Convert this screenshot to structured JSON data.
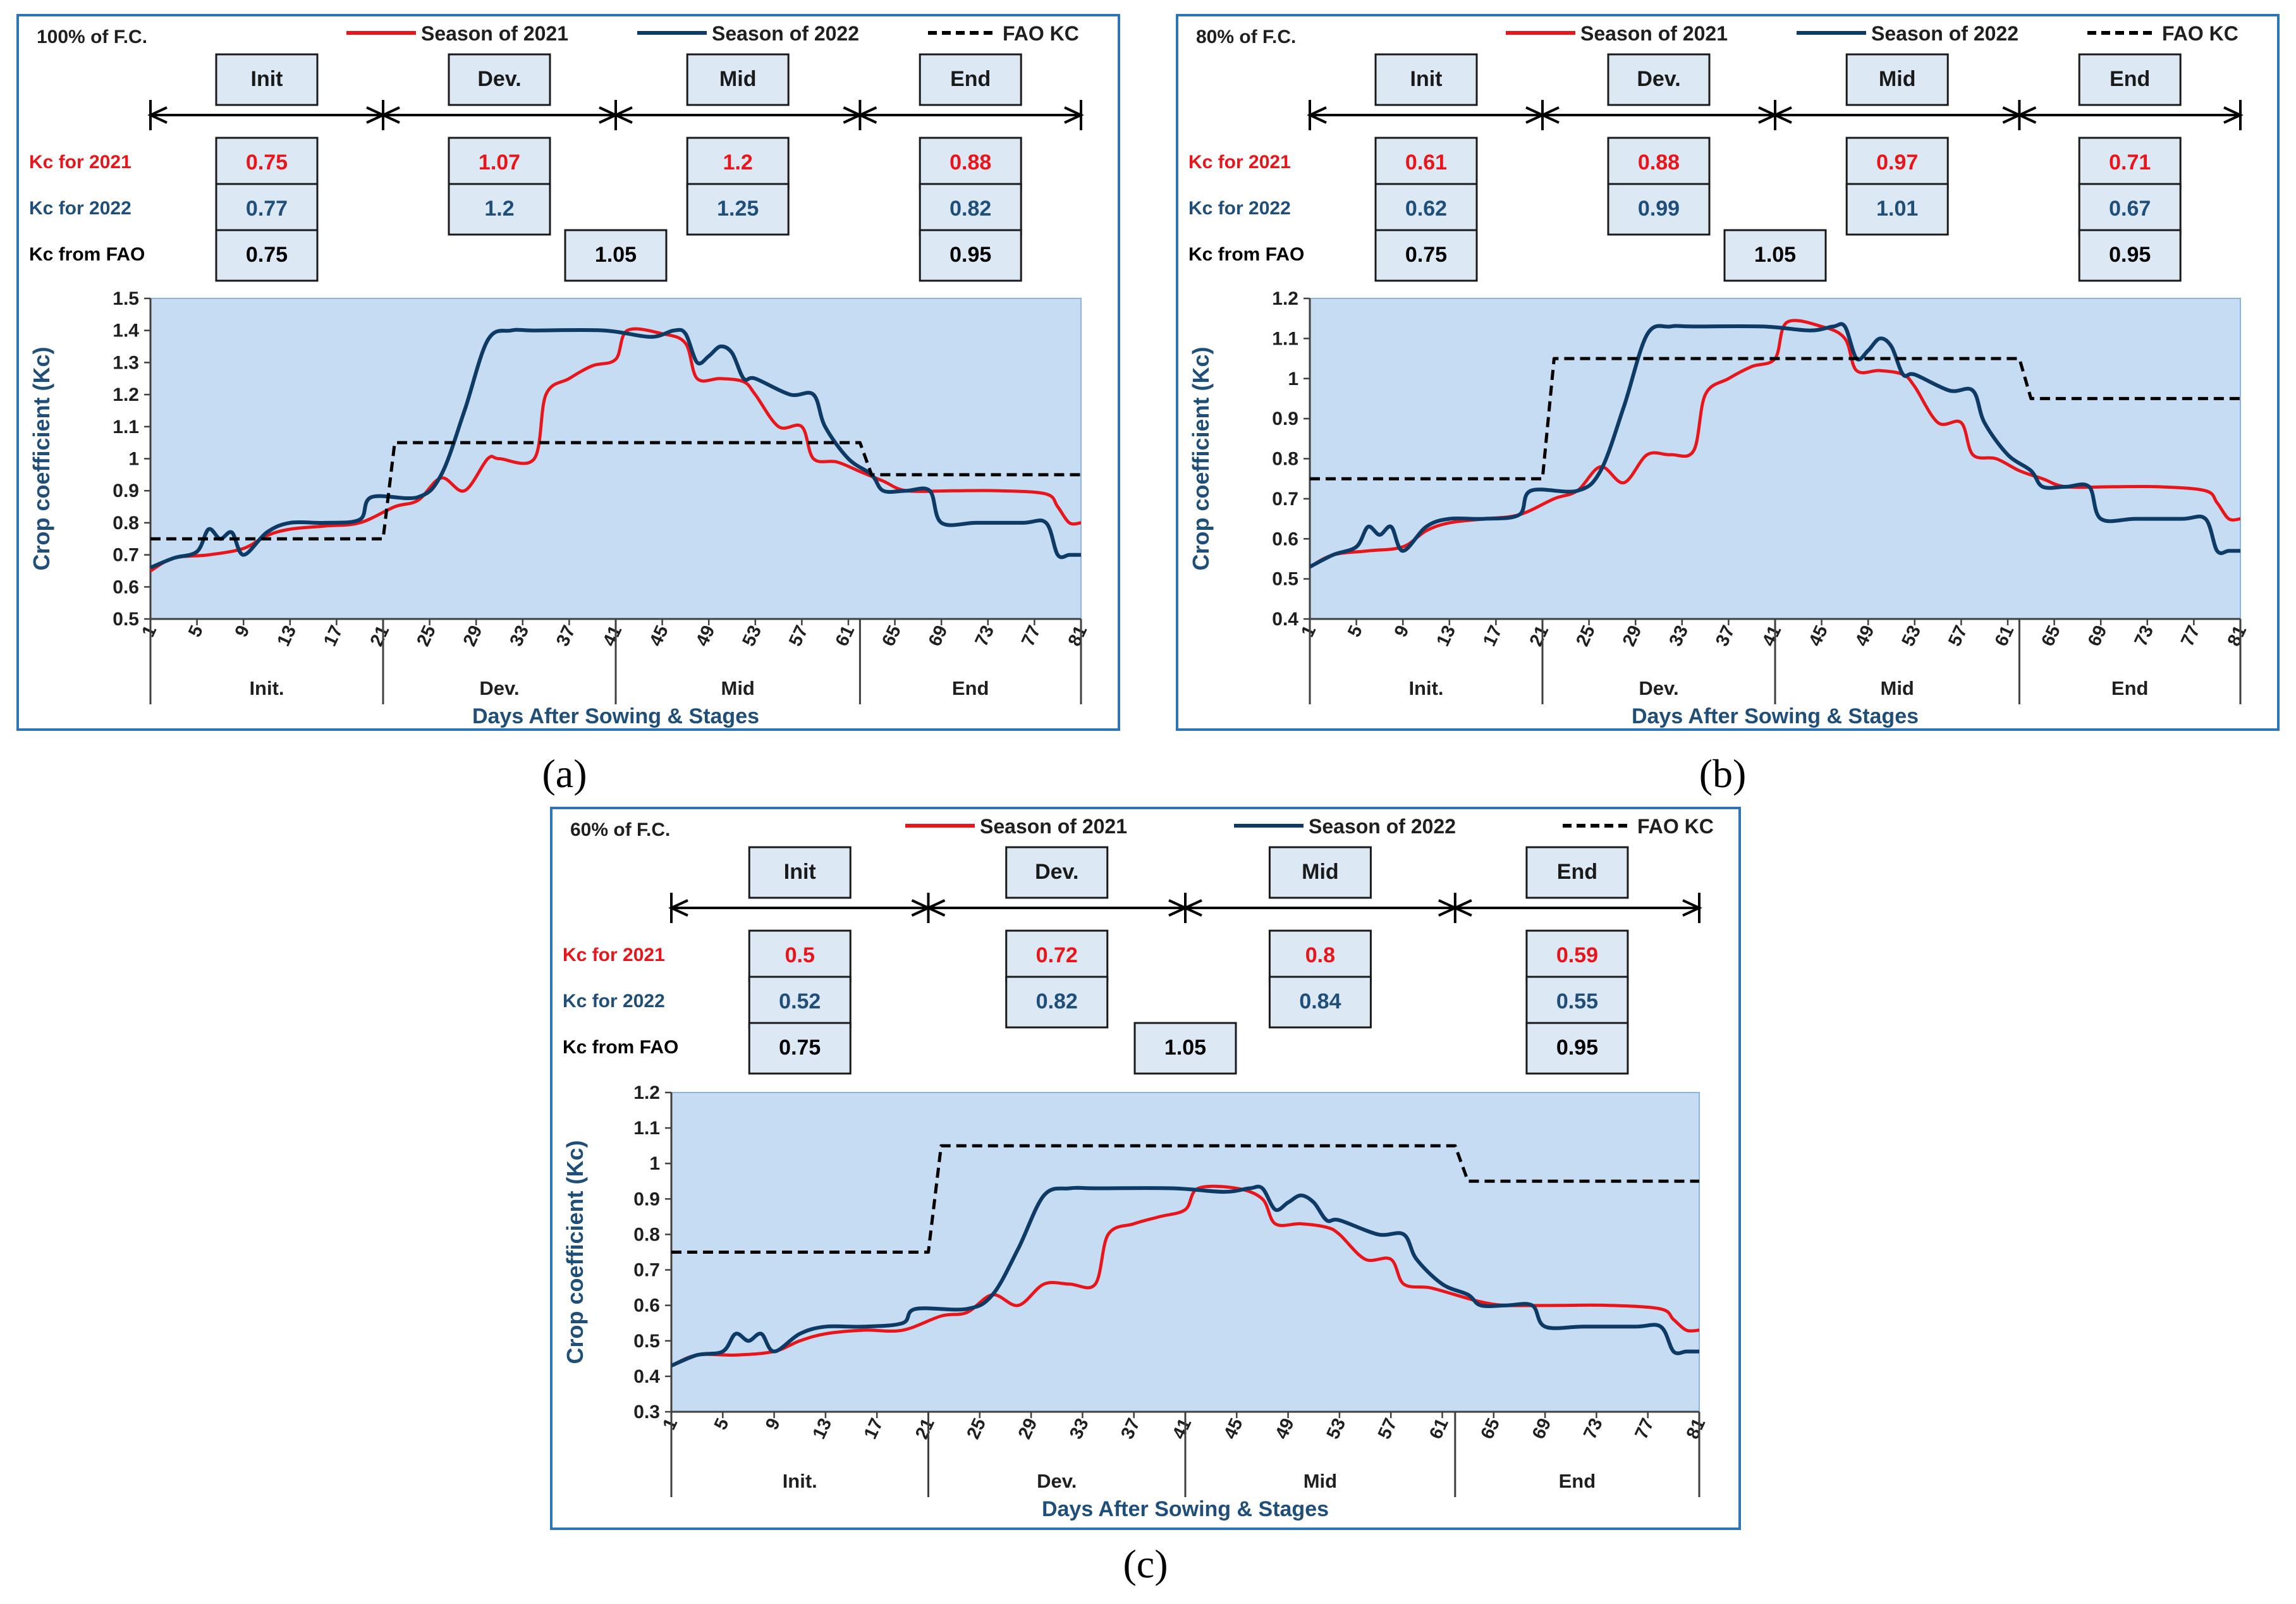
{
  "figure": {
    "captions": [
      "(a)",
      "(b)",
      "(c)"
    ],
    "legend": {
      "s2021": "Season of 2021",
      "s2022": "Season of 2022",
      "fao": "FAO KC"
    },
    "row_labels": {
      "k2021": "Kc for 2021",
      "k2022": "Kc for 2022",
      "fao": "Kc from FAO"
    },
    "stage_headers": [
      "Init",
      "Dev.",
      "Mid",
      "End"
    ],
    "stage_axis_labels": [
      "Init.",
      "Dev.",
      "Mid",
      "End"
    ],
    "colors": {
      "s2021": "#e8161b",
      "s2022": "#0e3a66",
      "fao": "#000000",
      "kc2021_text": "#e8161b",
      "kc2022_text": "#1f4e79",
      "fao_text": "#000000"
    }
  },
  "chart_data": [
    {
      "type": "line",
      "title": "100% of F.C.",
      "xlabel": "Days After Sowing & Stages",
      "ylabel": "Crop coefficient (Kc)",
      "ylim": [
        0.5,
        1.5
      ],
      "yticks": [
        "0.5",
        "0.6",
        "0.7",
        "0.8",
        "0.9",
        "1",
        "1.1",
        "1.2",
        "1.3",
        "1.4",
        "1.5"
      ],
      "xlim": [
        1,
        81
      ],
      "xticks": [
        "1",
        "5",
        "9",
        "13",
        "17",
        "21",
        "25",
        "29",
        "33",
        "37",
        "41",
        "45",
        "49",
        "53",
        "57",
        "61",
        "65",
        "69",
        "73",
        "77",
        "81"
      ],
      "stage_boundaries": [
        21,
        41,
        62
      ],
      "kc_2021": [
        "0.75",
        "1.07",
        "1.2",
        "0.88"
      ],
      "kc_2022": [
        "0.77",
        "1.2",
        "1.25",
        "0.82"
      ],
      "kc_fao": [
        "0.75",
        "1.05",
        "0.95"
      ],
      "series": [
        {
          "name": "Season of 2021",
          "x": [
            1,
            3,
            6,
            9,
            11,
            13,
            16,
            19,
            22,
            24,
            26,
            28,
            30,
            31,
            34,
            35,
            37,
            39,
            41,
            42,
            45,
            47,
            48,
            50,
            52,
            53,
            55,
            57,
            58,
            60,
            62,
            64,
            66,
            70,
            74,
            78,
            79,
            80,
            81
          ],
          "y": [
            0.65,
            0.69,
            0.7,
            0.72,
            0.76,
            0.78,
            0.79,
            0.8,
            0.85,
            0.87,
            0.94,
            0.9,
            1.0,
            1.0,
            1.0,
            1.2,
            1.25,
            1.29,
            1.31,
            1.4,
            1.39,
            1.36,
            1.25,
            1.25,
            1.24,
            1.2,
            1.1,
            1.1,
            1.0,
            0.99,
            0.96,
            0.93,
            0.9,
            0.9,
            0.9,
            0.89,
            0.85,
            0.8,
            0.8
          ]
        },
        {
          "name": "Season of 2022",
          "x": [
            1,
            3,
            5,
            6,
            7,
            8,
            9,
            11,
            13,
            16,
            19,
            20,
            24,
            26,
            28,
            30,
            32,
            34,
            40,
            44,
            46,
            47,
            48,
            49,
            50,
            51,
            52,
            53,
            56,
            58,
            59,
            61,
            63,
            64,
            66,
            68,
            69,
            72,
            76,
            78,
            79,
            80,
            81
          ],
          "y": [
            0.66,
            0.69,
            0.71,
            0.78,
            0.75,
            0.77,
            0.7,
            0.77,
            0.8,
            0.8,
            0.81,
            0.88,
            0.88,
            0.95,
            1.15,
            1.37,
            1.4,
            1.4,
            1.4,
            1.38,
            1.4,
            1.39,
            1.3,
            1.32,
            1.35,
            1.33,
            1.25,
            1.25,
            1.2,
            1.2,
            1.1,
            1.0,
            0.95,
            0.9,
            0.9,
            0.9,
            0.8,
            0.8,
            0.8,
            0.8,
            0.7,
            0.7,
            0.7
          ]
        },
        {
          "name": "FAO KC",
          "x": [
            1,
            21,
            22,
            62,
            63,
            81
          ],
          "y": [
            0.75,
            0.75,
            1.05,
            1.05,
            0.95,
            0.95
          ]
        }
      ]
    },
    {
      "type": "line",
      "title": "80% of F.C.",
      "xlabel": "Days After Sowing & Stages",
      "ylabel": "Crop coefficient (Kc)",
      "ylim": [
        0.4,
        1.2
      ],
      "yticks": [
        "0.4",
        "0.5",
        "0.6",
        "0.7",
        "0.8",
        "0.9",
        "1",
        "1.1",
        "1.2"
      ],
      "xlim": [
        1,
        81
      ],
      "xticks": [
        "1",
        "5",
        "9",
        "13",
        "17",
        "21",
        "25",
        "29",
        "33",
        "37",
        "41",
        "45",
        "49",
        "53",
        "57",
        "61",
        "65",
        "69",
        "73",
        "77",
        "81"
      ],
      "stage_boundaries": [
        21,
        41,
        62
      ],
      "kc_2021": [
        "0.61",
        "0.88",
        "0.97",
        "0.71"
      ],
      "kc_2022": [
        "0.62",
        "0.99",
        "1.01",
        "0.67"
      ],
      "kc_fao": [
        "0.75",
        "1.05",
        "0.95"
      ],
      "series": [
        {
          "name": "Season of 2021",
          "x": [
            1,
            3,
            6,
            9,
            11,
            13,
            16,
            19,
            22,
            24,
            26,
            28,
            30,
            32,
            34,
            35,
            37,
            39,
            41,
            42,
            45,
            47,
            48,
            50,
            52,
            53,
            55,
            57,
            58,
            60,
            62,
            64,
            66,
            70,
            74,
            78,
            79,
            80,
            81
          ],
          "y": [
            0.53,
            0.56,
            0.57,
            0.58,
            0.62,
            0.64,
            0.65,
            0.66,
            0.7,
            0.72,
            0.78,
            0.74,
            0.81,
            0.81,
            0.82,
            0.96,
            1.0,
            1.03,
            1.05,
            1.14,
            1.13,
            1.1,
            1.02,
            1.02,
            1.01,
            0.98,
            0.89,
            0.89,
            0.81,
            0.8,
            0.77,
            0.75,
            0.73,
            0.73,
            0.73,
            0.72,
            0.69,
            0.65,
            0.65
          ]
        },
        {
          "name": "Season of 2022",
          "x": [
            1,
            3,
            5,
            6,
            7,
            8,
            9,
            11,
            13,
            16,
            19,
            20,
            24,
            26,
            28,
            30,
            32,
            34,
            40,
            44,
            46,
            47,
            48,
            49,
            50,
            51,
            52,
            53,
            56,
            58,
            59,
            61,
            63,
            64,
            66,
            68,
            69,
            72,
            76,
            78,
            79,
            80,
            81
          ],
          "y": [
            0.53,
            0.56,
            0.58,
            0.63,
            0.61,
            0.63,
            0.57,
            0.63,
            0.65,
            0.65,
            0.66,
            0.72,
            0.72,
            0.77,
            0.93,
            1.11,
            1.13,
            1.13,
            1.13,
            1.12,
            1.13,
            1.13,
            1.05,
            1.07,
            1.1,
            1.08,
            1.01,
            1.01,
            0.97,
            0.97,
            0.89,
            0.81,
            0.77,
            0.73,
            0.73,
            0.73,
            0.65,
            0.65,
            0.65,
            0.65,
            0.57,
            0.57,
            0.57
          ]
        },
        {
          "name": "FAO KC",
          "x": [
            1,
            21,
            22,
            62,
            63,
            81
          ],
          "y": [
            0.75,
            0.75,
            1.05,
            1.05,
            0.95,
            0.95
          ]
        }
      ]
    },
    {
      "type": "line",
      "title": "60% of F.C.",
      "xlabel": "Days After Sowing & Stages",
      "ylabel": "Crop coefficient (Kc)",
      "ylim": [
        0.3,
        1.2
      ],
      "yticks": [
        "0.3",
        "0.4",
        "0.5",
        "0.6",
        "0.7",
        "0.8",
        "0.9",
        "1",
        "1.1",
        "1.2"
      ],
      "xlim": [
        1,
        81
      ],
      "xticks": [
        "1",
        "5",
        "9",
        "13",
        "17",
        "21",
        "25",
        "29",
        "33",
        "37",
        "41",
        "45",
        "49",
        "53",
        "57",
        "61",
        "65",
        "69",
        "73",
        "77",
        "81"
      ],
      "stage_boundaries": [
        21,
        41,
        62
      ],
      "kc_2021": [
        "0.5",
        "0.72",
        "0.8",
        "0.59"
      ],
      "kc_2022": [
        "0.52",
        "0.82",
        "0.84",
        "0.55"
      ],
      "kc_fao": [
        "0.75",
        "1.05",
        "0.95"
      ],
      "series": [
        {
          "name": "Season of 2021",
          "x": [
            1,
            3,
            6,
            9,
            11,
            13,
            16,
            19,
            22,
            24,
            26,
            28,
            30,
            32,
            34,
            35,
            37,
            39,
            41,
            42,
            45,
            47,
            48,
            50,
            52,
            53,
            55,
            57,
            58,
            60,
            62,
            64,
            66,
            70,
            74,
            78,
            79,
            80,
            81
          ],
          "y": [
            0.43,
            0.46,
            0.46,
            0.47,
            0.5,
            0.52,
            0.53,
            0.53,
            0.57,
            0.58,
            0.63,
            0.6,
            0.66,
            0.66,
            0.66,
            0.8,
            0.83,
            0.85,
            0.87,
            0.93,
            0.93,
            0.9,
            0.83,
            0.83,
            0.82,
            0.8,
            0.73,
            0.73,
            0.66,
            0.65,
            0.63,
            0.61,
            0.6,
            0.6,
            0.6,
            0.59,
            0.56,
            0.53,
            0.53
          ]
        },
        {
          "name": "Season of 2022",
          "x": [
            1,
            3,
            5,
            6,
            7,
            8,
            9,
            11,
            13,
            16,
            19,
            20,
            24,
            26,
            28,
            30,
            32,
            34,
            40,
            44,
            46,
            47,
            48,
            49,
            50,
            51,
            52,
            53,
            56,
            58,
            59,
            61,
            63,
            64,
            66,
            68,
            69,
            72,
            76,
            78,
            79,
            80,
            81
          ],
          "y": [
            0.43,
            0.46,
            0.47,
            0.52,
            0.5,
            0.52,
            0.47,
            0.52,
            0.54,
            0.54,
            0.55,
            0.59,
            0.59,
            0.63,
            0.76,
            0.91,
            0.93,
            0.93,
            0.93,
            0.92,
            0.93,
            0.93,
            0.87,
            0.89,
            0.91,
            0.89,
            0.84,
            0.84,
            0.8,
            0.8,
            0.73,
            0.66,
            0.63,
            0.6,
            0.6,
            0.6,
            0.54,
            0.54,
            0.54,
            0.54,
            0.47,
            0.47,
            0.47
          ]
        },
        {
          "name": "FAO KC",
          "x": [
            1,
            21,
            22,
            62,
            63,
            81
          ],
          "y": [
            0.75,
            0.75,
            1.05,
            1.05,
            0.95,
            0.95
          ]
        }
      ]
    }
  ]
}
